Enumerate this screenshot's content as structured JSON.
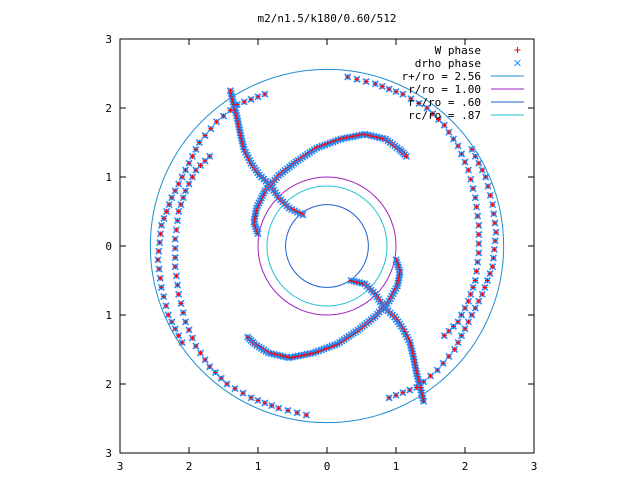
{
  "chart_data": {
    "type": "scatter",
    "title": "m2/n1.5/k180/0.60/512",
    "xlim": [
      -3,
      3
    ],
    "ylim": [
      -3,
      3
    ],
    "x_ticks": [
      -3,
      -2,
      -1,
      0,
      1,
      2,
      3
    ],
    "y_ticks": [
      -3,
      -2,
      -1,
      0,
      1,
      2,
      3
    ],
    "x_tick_labels": [
      "3",
      "2",
      "1",
      "0",
      "1",
      "2",
      "3"
    ],
    "y_tick_labels": [
      "3",
      "2",
      "1",
      "0",
      "1",
      "2",
      "3"
    ],
    "grid": false,
    "legend_position": "top-right",
    "series": [
      {
        "name": "W phase",
        "marker": "plus",
        "color": "#ff0000",
        "arms": [
          [
            [
              -0.35,
              0.45
            ],
            [
              -0.55,
              0.55
            ],
            [
              -0.7,
              0.7
            ],
            [
              -0.82,
              0.88
            ],
            [
              -0.98,
              1.03
            ],
            [
              -1.1,
              1.2
            ],
            [
              -1.2,
              1.4
            ],
            [
              -1.25,
              1.6
            ],
            [
              -1.3,
              1.85
            ],
            [
              -1.35,
              2.05
            ],
            [
              -1.4,
              2.25
            ]
          ],
          [
            [
              -1.0,
              0.18
            ],
            [
              -1.06,
              0.35
            ],
            [
              -1.02,
              0.55
            ],
            [
              -0.9,
              0.8
            ],
            [
              -0.7,
              1.02
            ],
            [
              -0.45,
              1.22
            ],
            [
              -0.15,
              1.42
            ],
            [
              0.2,
              1.55
            ],
            [
              0.55,
              1.62
            ],
            [
              0.85,
              1.55
            ],
            [
              1.05,
              1.4
            ],
            [
              1.15,
              1.3
            ]
          ],
          [
            [
              0.35,
              -0.5
            ],
            [
              0.55,
              -0.55
            ],
            [
              0.7,
              -0.7
            ],
            [
              0.82,
              -0.88
            ],
            [
              0.98,
              -1.03
            ],
            [
              1.1,
              -1.2
            ],
            [
              1.2,
              -1.4
            ],
            [
              1.25,
              -1.6
            ],
            [
              1.3,
              -1.85
            ],
            [
              1.35,
              -2.05
            ],
            [
              1.4,
              -2.25
            ]
          ],
          [
            [
              1.0,
              -0.2
            ],
            [
              1.06,
              -0.38
            ],
            [
              1.02,
              -0.58
            ],
            [
              0.9,
              -0.8
            ],
            [
              0.7,
              -1.02
            ],
            [
              0.45,
              -1.22
            ],
            [
              0.15,
              -1.42
            ],
            [
              -0.2,
              -1.55
            ],
            [
              -0.55,
              -1.62
            ],
            [
              -0.85,
              -1.55
            ],
            [
              -1.05,
              -1.42
            ],
            [
              -1.15,
              -1.32
            ]
          ],
          [
            [
              0.3,
              2.45
            ],
            [
              0.7,
              2.35
            ],
            [
              1.1,
              2.2
            ],
            [
              1.45,
              2.0
            ],
            [
              1.7,
              1.75
            ],
            [
              1.9,
              1.45
            ],
            [
              2.05,
              1.1
            ],
            [
              2.15,
              0.7
            ],
            [
              2.2,
              0.3
            ],
            [
              2.2,
              -0.1
            ],
            [
              2.15,
              -0.5
            ],
            [
              2.05,
              -0.8
            ],
            [
              1.9,
              -1.1
            ],
            [
              1.7,
              -1.3
            ]
          ],
          [
            [
              -0.3,
              -2.45
            ],
            [
              -0.7,
              -2.35
            ],
            [
              -1.1,
              -2.2
            ],
            [
              -1.45,
              -2.0
            ],
            [
              -1.7,
              -1.75
            ],
            [
              -1.9,
              -1.45
            ],
            [
              -2.05,
              -1.1
            ],
            [
              -2.15,
              -0.7
            ],
            [
              -2.2,
              -0.3
            ],
            [
              -2.2,
              0.1
            ],
            [
              -2.15,
              0.5
            ],
            [
              -2.05,
              0.8
            ],
            [
              -1.9,
              1.1
            ],
            [
              -1.7,
              1.3
            ]
          ],
          [
            [
              -0.9,
              2.2
            ],
            [
              -1.3,
              2.05
            ],
            [
              -1.6,
              1.8
            ],
            [
              -1.85,
              1.5
            ],
            [
              -2.05,
              1.1
            ],
            [
              -2.25,
              0.7
            ],
            [
              -2.4,
              0.3
            ],
            [
              -2.45,
              -0.2
            ],
            [
              -2.4,
              -0.6
            ],
            [
              -2.3,
              -1.0
            ],
            [
              -2.1,
              -1.4
            ]
          ],
          [
            [
              0.9,
              -2.2
            ],
            [
              1.3,
              -2.05
            ],
            [
              1.6,
              -1.8
            ],
            [
              1.85,
              -1.5
            ],
            [
              2.05,
              -1.1
            ],
            [
              2.25,
              -0.7
            ],
            [
              2.4,
              -0.3
            ],
            [
              2.45,
              0.2
            ],
            [
              2.4,
              0.6
            ],
            [
              2.3,
              1.0
            ],
            [
              2.1,
              1.4
            ]
          ]
        ]
      },
      {
        "name": "drho phase",
        "marker": "cross",
        "color": "#1f8fff",
        "arms": "same as W phase"
      }
    ],
    "circles": [
      {
        "name": "r+/ro = 2.56",
        "radius": 2.56,
        "color": "#1f8fd0"
      },
      {
        "name": "r/ro = 1.00",
        "radius": 1.0,
        "color": "#a020c0"
      },
      {
        "name": "r-/ro = .60",
        "radius": 0.6,
        "color": "#2060d0"
      },
      {
        "name": "rc/ro = .87",
        "radius": 0.87,
        "color": "#20c0d0"
      }
    ]
  }
}
